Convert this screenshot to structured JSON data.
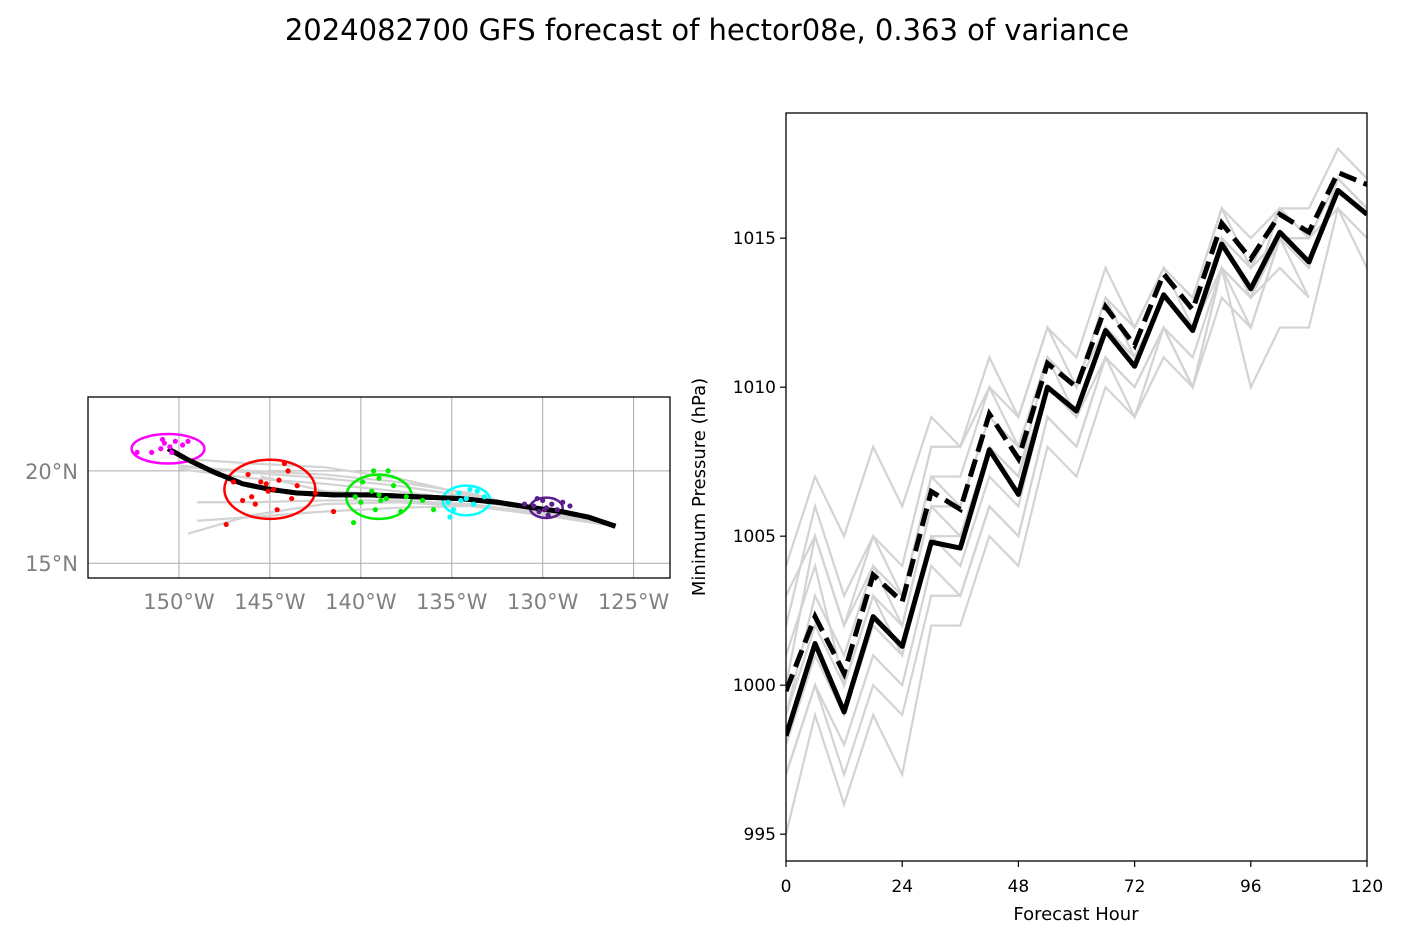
{
  "title": "2024082700 GFS forecast of hector08e, 0.363 of variance",
  "colors": {
    "ensemble": "#d3d3d3",
    "mean": "#000000",
    "cluster_0h": "#ff00ff",
    "cluster_24h": "#ff0000",
    "cluster_48h": "#00ee00",
    "cluster_72h": "#00ffff",
    "cluster_96h": "#5b1c8c"
  },
  "chart_data": [
    {
      "type": "map-track",
      "xlim": [
        -155,
        -123
      ],
      "ylim": [
        14.2,
        24
      ],
      "x_ticks": [
        -150,
        -145,
        -140,
        -135,
        -130,
        -125
      ],
      "x_tick_labels": [
        "150°W",
        "145°W",
        "140°W",
        "135°W",
        "130°W",
        "125°W"
      ],
      "y_ticks": [
        15,
        20
      ],
      "y_tick_labels": [
        "15°N",
        "20°N"
      ],
      "grid": true,
      "mean_track": {
        "lon": [
          -126.0,
          -127.5,
          -129.0,
          -130.5,
          -132.5,
          -134.5,
          -137.0,
          -139.5,
          -141.5,
          -143.5,
          -145.0,
          -146.5,
          -148.0,
          -149.5,
          -150.6
        ],
        "lat": [
          17.0,
          17.5,
          17.8,
          18.0,
          18.3,
          18.5,
          18.6,
          18.7,
          18.7,
          18.8,
          19.0,
          19.3,
          19.9,
          20.6,
          21.2
        ]
      },
      "ensemble_tracks": [
        {
          "lon": [
            -126.0,
            -130.0,
            -134.0,
            -138.0,
            -142.0,
            -146.0,
            -149.0
          ],
          "lat": [
            17.1,
            17.9,
            18.7,
            19.6,
            20.2,
            20.4,
            20.6
          ]
        },
        {
          "lon": [
            -126.0,
            -130.0,
            -134.0,
            -138.0,
            -142.0,
            -146.0,
            -150.0
          ],
          "lat": [
            17.0,
            17.8,
            18.4,
            18.9,
            19.3,
            19.6,
            20.1
          ]
        },
        {
          "lon": [
            -126.0,
            -130.0,
            -134.0,
            -138.0,
            -142.0,
            -146.0,
            -149.5
          ],
          "lat": [
            17.0,
            17.7,
            18.1,
            18.3,
            18.2,
            17.6,
            16.6
          ]
        },
        {
          "lon": [
            -126.0,
            -130.0,
            -134.0,
            -138.0,
            -142.0,
            -145.5
          ],
          "lat": [
            17.0,
            17.9,
            18.5,
            18.7,
            18.9,
            19.7
          ]
        },
        {
          "lon": [
            -126.0,
            -130.0,
            -134.0,
            -138.0,
            -142.0,
            -146.0,
            -149.0
          ],
          "lat": [
            17.0,
            17.6,
            18.1,
            18.0,
            17.8,
            17.5,
            17.3
          ]
        },
        {
          "lon": [
            -126.0,
            -130.0,
            -134.0,
            -138.0,
            -142.0,
            -146.0,
            -150.0
          ],
          "lat": [
            17.1,
            17.9,
            18.6,
            19.2,
            19.6,
            19.9,
            20.3
          ]
        },
        {
          "lon": [
            -126.0,
            -130.0,
            -134.0,
            -138.0,
            -142.0,
            -146.0,
            -149.0
          ],
          "lat": [
            17.0,
            17.7,
            18.2,
            18.4,
            18.4,
            18.3,
            18.3
          ]
        },
        {
          "lon": [
            -126.0,
            -130.0,
            -134.0,
            -138.0,
            -142.0,
            -146.0,
            -150.0
          ],
          "lat": [
            17.0,
            17.8,
            18.8,
            19.4,
            19.8,
            20.0,
            20.2
          ]
        }
      ],
      "clusters": [
        {
          "hour": 0,
          "color": "#ff00ff",
          "center": [
            -150.6,
            21.2
          ],
          "radius_deg": [
            2.0,
            0.8
          ],
          "points": [
            [
              -151.5,
              21.0
            ],
            [
              -150.8,
              21.5
            ],
            [
              -150.5,
              21.3
            ],
            [
              -150.2,
              21.6
            ],
            [
              -149.8,
              21.4
            ],
            [
              -151.0,
              21.2
            ],
            [
              -150.4,
              21.0
            ],
            [
              -149.5,
              21.6
            ],
            [
              -152.3,
              21.0
            ],
            [
              -150.9,
              21.7
            ]
          ]
        },
        {
          "hour": 24,
          "color": "#ff0000",
          "center": [
            -145.0,
            19.0
          ],
          "radius_deg": [
            2.5,
            1.6
          ],
          "points": [
            [
              -145.5,
              19.4
            ],
            [
              -145.2,
              19.3
            ],
            [
              -144.8,
              19.0
            ],
            [
              -144.5,
              19.5
            ],
            [
              -146.0,
              18.6
            ],
            [
              -144.0,
              20.0
            ],
            [
              -143.5,
              19.2
            ],
            [
              -147.0,
              19.4
            ],
            [
              -145.8,
              18.2
            ],
            [
              -144.6,
              17.9
            ],
            [
              -142.5,
              18.8
            ],
            [
              -147.4,
              17.1
            ],
            [
              -146.2,
              19.8
            ],
            [
              -144.2,
              20.4
            ],
            [
              -143.8,
              18.5
            ],
            [
              -145.1,
              18.9
            ],
            [
              -141.5,
              17.8
            ],
            [
              -146.5,
              18.4
            ]
          ]
        },
        {
          "hour": 48,
          "color": "#00ee00",
          "center": [
            -139.0,
            18.6
          ],
          "radius_deg": [
            1.8,
            1.2
          ],
          "points": [
            [
              -139.0,
              18.7
            ],
            [
              -138.6,
              18.5
            ],
            [
              -139.4,
              18.9
            ],
            [
              -138.2,
              19.2
            ],
            [
              -140.0,
              18.3
            ],
            [
              -139.2,
              17.9
            ],
            [
              -137.5,
              18.6
            ],
            [
              -140.3,
              18.6
            ],
            [
              -139.0,
              19.6
            ],
            [
              -138.5,
              20.0
            ],
            [
              -139.3,
              20.0
            ],
            [
              -140.4,
              17.2
            ],
            [
              -136.6,
              18.4
            ],
            [
              -137.8,
              17.8
            ],
            [
              -139.9,
              19.4
            ],
            [
              -138.9,
              18.4
            ],
            [
              -136.0,
              17.9
            ]
          ]
        },
        {
          "hour": 72,
          "color": "#00ffff",
          "center": [
            -134.2,
            18.4
          ],
          "radius_deg": [
            1.3,
            0.8
          ],
          "points": [
            [
              -134.2,
              18.5
            ],
            [
              -134.6,
              18.8
            ],
            [
              -133.8,
              18.2
            ],
            [
              -135.2,
              18.3
            ],
            [
              -134.0,
              19.0
            ],
            [
              -134.9,
              17.9
            ],
            [
              -133.2,
              18.6
            ],
            [
              -134.5,
              18.4
            ],
            [
              -135.1,
              17.5
            ],
            [
              -133.6,
              18.9
            ]
          ]
        },
        {
          "hour": 96,
          "color": "#5b1c8c",
          "center": [
            -129.8,
            18.0
          ],
          "radius_deg": [
            0.9,
            0.55
          ],
          "points": [
            [
              -129.8,
              18.0
            ],
            [
              -130.2,
              17.8
            ],
            [
              -129.5,
              18.2
            ],
            [
              -130.0,
              18.4
            ],
            [
              -129.2,
              17.9
            ],
            [
              -130.5,
              18.1
            ],
            [
              -128.9,
              18.3
            ],
            [
              -129.7,
              17.6
            ],
            [
              -130.3,
              18.5
            ],
            [
              -128.5,
              18.1
            ],
            [
              -131.0,
              18.2
            ],
            [
              -129.9,
              17.9
            ]
          ]
        }
      ]
    },
    {
      "type": "line",
      "xlabel": "Forecast Hour",
      "ylabel": "Minimum Pressure (hPa)",
      "xlim": [
        0,
        120
      ],
      "ylim": [
        994.1,
        1019.2
      ],
      "x_ticks": [
        0,
        24,
        48,
        72,
        96,
        120
      ],
      "y_ticks": [
        995,
        1000,
        1005,
        1010,
        1015
      ],
      "x": [
        0,
        6,
        12,
        18,
        24,
        30,
        36,
        42,
        48,
        54,
        60,
        66,
        72,
        78,
        84,
        90,
        96,
        102,
        108,
        114,
        120
      ],
      "series": [
        {
          "role": "mean-solid",
          "values": [
            998.3,
            1001.4,
            999.1,
            1002.3,
            1001.3,
            1004.8,
            1004.6,
            1007.9,
            1006.4,
            1010.0,
            1009.2,
            1011.9,
            1010.7,
            1013.1,
            1011.9,
            1014.8,
            1013.3,
            1015.2,
            1014.2,
            1016.6,
            1015.8
          ]
        },
        {
          "role": "mean-dashed",
          "values": [
            999.8,
            1002.3,
            1000.4,
            1003.7,
            1002.8,
            1006.5,
            1005.9,
            1009.1,
            1007.6,
            1010.8,
            1010.0,
            1012.7,
            1011.4,
            1013.8,
            1012.6,
            1015.5,
            1014.3,
            1015.8,
            1015.2,
            1017.2,
            1016.8
          ]
        },
        {
          "role": "ensemble",
          "values": [
            1004.0,
            1007.0,
            1005.0,
            1008.0,
            1006.0,
            1009.0,
            1008.0,
            1011.0,
            1009.0,
            1012.0,
            1011.0,
            1014.0,
            1012.0,
            1014.0,
            1013.0,
            1016.0,
            1015.0,
            1016.0,
            1016.0,
            1018.0,
            1017.0
          ]
        },
        {
          "role": "ensemble",
          "values": [
            1002.0,
            1006.0,
            1003.0,
            1005.0,
            1004.0,
            1008.0,
            1008.0,
            1010.0,
            1009.0,
            1012.0,
            1010.0,
            1013.0,
            1012.0,
            1014.0,
            1013.0,
            1016.0,
            1014.0,
            1016.0,
            1015.0,
            1017.0,
            1016.0
          ]
        },
        {
          "role": "ensemble",
          "values": [
            1000.0,
            1005.0,
            1002.0,
            1005.0,
            1003.0,
            1007.0,
            1006.0,
            1009.0,
            1008.0,
            1011.0,
            1010.0,
            1013.0,
            1011.0,
            1013.0,
            1012.0,
            1015.0,
            1014.0,
            1015.0,
            1015.0,
            1016.0,
            1015.0
          ]
        },
        {
          "role": "ensemble",
          "values": [
            999.0,
            1003.0,
            1001.0,
            1004.0,
            1002.0,
            1006.0,
            1005.0,
            1008.0,
            1007.0,
            1011.0,
            1009.0,
            1012.0,
            1011.0,
            1013.0,
            1012.0,
            1015.0,
            1013.0,
            1015.0,
            1014.0,
            1017.0,
            1016.0
          ]
        },
        {
          "role": "ensemble",
          "values": [
            998.0,
            1001.0,
            999.0,
            1002.0,
            1001.0,
            1005.0,
            1004.0,
            1007.0,
            1006.0,
            1010.0,
            1009.0,
            1011.0,
            1010.0,
            1012.0,
            1011.0,
            1014.0,
            1013.0,
            1014.0,
            1013.0,
            null,
            null
          ]
        },
        {
          "role": "ensemble",
          "values": [
            997.0,
            1000.0,
            998.0,
            1001.0,
            1000.0,
            1004.0,
            1003.0,
            1006.0,
            1005.0,
            1009.0,
            1008.0,
            1011.0,
            1009.0,
            1012.0,
            1010.0,
            1014.0,
            1012.0,
            1015.0,
            null,
            null,
            null
          ]
        },
        {
          "role": "ensemble",
          "values": [
            995.0,
            999.0,
            996.0,
            999.0,
            997.0,
            1002.0,
            1002.0,
            1005.0,
            1004.0,
            1008.0,
            1007.0,
            1010.0,
            1009.0,
            1011.0,
            1010.0,
            1013.0,
            1012.0,
            1015.0,
            1015.0,
            1016.0,
            1014.0
          ]
        },
        {
          "role": "ensemble",
          "values": [
            997.0,
            1000.0,
            997.0,
            1000.0,
            999.0,
            1003.0,
            1003.0,
            1006.0,
            1005.0,
            1009.0,
            1008.0,
            1011.0,
            1010.0,
            1012.0,
            1010.0,
            1014.0,
            1010.0,
            1012.0,
            1012.0,
            1016.0,
            null
          ]
        },
        {
          "role": "ensemble",
          "values": [
            1001.0,
            1004.0,
            1000.0,
            1003.0,
            1002.0,
            1006.0,
            1006.0,
            1009.0,
            1008.0,
            1011.0,
            1010.0,
            1012.0,
            1011.0,
            1013.0,
            1012.0,
            1015.0,
            1014.0,
            1015.0,
            1013.0,
            null,
            null
          ]
        },
        {
          "role": "ensemble",
          "values": [
            999.0,
            1002.0,
            1000.0,
            1003.0,
            1001.0,
            1005.0,
            1005.0,
            1008.0,
            1007.0,
            1010.0,
            1009.0,
            1012.0,
            1011.0,
            1013.0,
            1012.0,
            1014.0,
            1013.0,
            1016.0,
            1015.0,
            1017.0,
            1016.0
          ]
        },
        {
          "role": "ensemble",
          "values": [
            1003.0,
            1005.0,
            1002.0,
            1004.0,
            1003.0,
            1007.0,
            1007.0,
            1010.0,
            1008.0,
            1011.0,
            1010.0,
            1013.0,
            1012.0,
            1014.0,
            1012.0,
            1015.0,
            1014.0,
            1016.0,
            1015.0,
            null,
            null
          ]
        }
      ]
    }
  ]
}
